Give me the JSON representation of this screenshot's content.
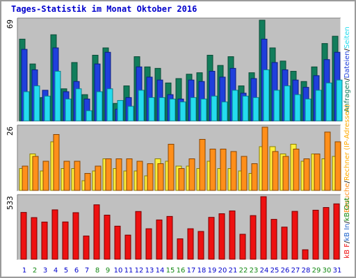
{
  "title": "Tages-Statistik im Monat Oktober 2016",
  "colors": {
    "panel_bg": "#c0c0c0",
    "hits": "#117d5b",
    "files": "#1f3fdc",
    "pages": "#24dcee",
    "sites": "#ffef3b",
    "visits": "#ff8f1a",
    "kbin": "#2266cc",
    "kbout": "#118811",
    "kbf": "#ee1111",
    "day_normal": "#0000cc",
    "day_weekend": "#118811"
  },
  "legends": {
    "top": [
      {
        "text": "Anfragen",
        "color": "#117d5b"
      },
      {
        "text": "/",
        "color": "#000000"
      },
      {
        "text": "Dateien",
        "color": "#1f3fdc"
      },
      {
        "text": "/",
        "color": "#000000"
      },
      {
        "text": "Seiten",
        "color": "#24dcee"
      }
    ],
    "mid": [
      {
        "text": "Besuche",
        "color": "#ff8f1a"
      },
      {
        "text": "/",
        "color": "#000000"
      },
      {
        "text": "Rechner (IP-Adressen)",
        "color": "#ffaa00"
      }
    ],
    "bot": [
      {
        "text": "kB F",
        "color": "#ee1111"
      },
      {
        "text": "/",
        "color": "#000000"
      },
      {
        "text": "kB In",
        "color": "#2266cc"
      },
      {
        "text": "/",
        "color": "#000000"
      },
      {
        "text": "kB Out",
        "color": "#118811"
      }
    ]
  },
  "chart_data": [
    {
      "type": "bar",
      "name": "Anfragen / Dateien / Seiten",
      "ymax_label": "69",
      "ylim": [
        0,
        69
      ],
      "categories": [
        "1",
        "2",
        "3",
        "4",
        "5",
        "6",
        "7",
        "8",
        "9",
        "10",
        "11",
        "12",
        "13",
        "14",
        "15",
        "16",
        "17",
        "18",
        "19",
        "20",
        "21",
        "22",
        "23",
        "24",
        "25",
        "26",
        "27",
        "28",
        "29",
        "30",
        "31"
      ],
      "series": [
        {
          "name": "Anfragen",
          "values": [
            56,
            39,
            16,
            59,
            22,
            40,
            18,
            45,
            50,
            12,
            24,
            44,
            37,
            36,
            26,
            29,
            32,
            33,
            45,
            38,
            44,
            24,
            33,
            69,
            50,
            41,
            34,
            27,
            37,
            53,
            58
          ]
        },
        {
          "name": "Dateien",
          "values": [
            49,
            35,
            21,
            50,
            20,
            27,
            15,
            39,
            47,
            8,
            16,
            37,
            30,
            28,
            18,
            15,
            28,
            27,
            34,
            30,
            36,
            19,
            29,
            56,
            40,
            35,
            28,
            23,
            31,
            42,
            47
          ]
        },
        {
          "name": "Seiten",
          "values": [
            20,
            24,
            17,
            34,
            15,
            22,
            7,
            20,
            22,
            14,
            10,
            21,
            16,
            16,
            15,
            13,
            16,
            15,
            17,
            13,
            21,
            17,
            16,
            35,
            21,
            24,
            18,
            15,
            21,
            26,
            28
          ]
        }
      ]
    },
    {
      "type": "bar",
      "name": "Besuche / Rechner",
      "ymax_label": "26",
      "ylim": [
        0,
        26
      ],
      "categories": [
        "1",
        "2",
        "3",
        "4",
        "5",
        "6",
        "7",
        "8",
        "9",
        "10",
        "11",
        "12",
        "13",
        "14",
        "15",
        "16",
        "17",
        "18",
        "19",
        "20",
        "21",
        "22",
        "23",
        "24",
        "25",
        "26",
        "27",
        "28",
        "29",
        "30",
        "31"
      ],
      "series": [
        {
          "name": "Rechner",
          "values": [
            9,
            15,
            8,
            20,
            9,
            9,
            4,
            8,
            13,
            9,
            8,
            8,
            6,
            13,
            12,
            10,
            10,
            9,
            12,
            9,
            9,
            8,
            7,
            18,
            18,
            15,
            19,
            12,
            15,
            13,
            14
          ]
        },
        {
          "name": "Besuche",
          "values": [
            10,
            14,
            12,
            23,
            12,
            12,
            7,
            10,
            13,
            13,
            13,
            12,
            11,
            11,
            19,
            9,
            13,
            21,
            17,
            17,
            16,
            14,
            11,
            26,
            16,
            14,
            17,
            13,
            15,
            24,
            20
          ]
        }
      ]
    },
    {
      "type": "bar",
      "name": "kB F",
      "ymax_label": "533",
      "ylim": [
        0,
        533
      ],
      "categories": [
        "1",
        "2",
        "3",
        "4",
        "5",
        "6",
        "7",
        "8",
        "9",
        "10",
        "11",
        "12",
        "13",
        "14",
        "15",
        "16",
        "17",
        "18",
        "19",
        "20",
        "21",
        "22",
        "23",
        "24",
        "25",
        "26",
        "27",
        "28",
        "29",
        "30",
        "31"
      ],
      "series": [
        {
          "name": "kB F",
          "values": [
            399,
            355,
            317,
            421,
            318,
            397,
            198,
            464,
            376,
            282,
            206,
            407,
            260,
            335,
            365,
            174,
            260,
            237,
            357,
            388,
            412,
            213,
            372,
            533,
            340,
            274,
            408,
            81,
            418,
            441,
            472
          ]
        }
      ]
    }
  ],
  "weekend_days": [
    "2",
    "8",
    "9",
    "15",
    "16",
    "22",
    "23",
    "29",
    "30"
  ]
}
